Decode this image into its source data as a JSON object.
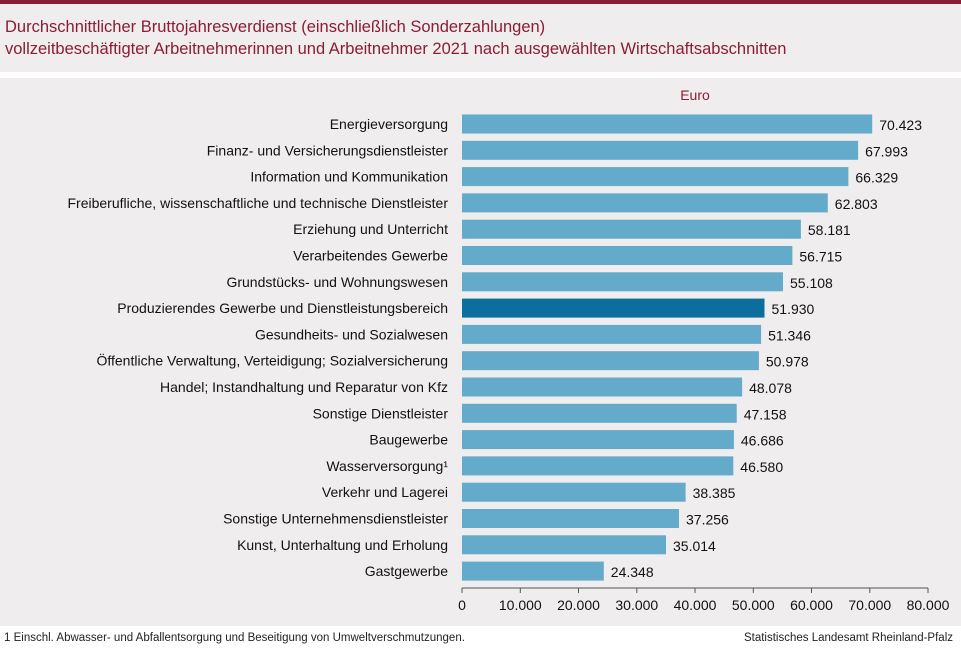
{
  "header": {
    "title_line1": "Durchschnittlicher Bruttojahresverdienst (einschließlich Sonderzahlungen)",
    "title_line2": "vollzeitbeschäftigter Arbeitnehmerinnen und Arbeitnehmer 2021 nach ausgewählten Wirtschaftsabschnitten"
  },
  "colors": {
    "bar": "#64aacb",
    "highlight": "#0b6e9c",
    "title": "#8b1c36",
    "panel": "#f0edee"
  },
  "chart_data": {
    "type": "bar",
    "orientation": "horizontal",
    "unit_label": "Euro",
    "categories": [
      "Energieversorgung",
      "Finanz- und Versicherungsdienstleister",
      "Information und Kommunikation",
      "Freiberufliche, wissenschaftliche und technische Dienstleister",
      "Erziehung und Unterricht",
      "Verarbeitendes Gewerbe",
      "Grundstücks- und Wohnungswesen",
      "Produzierendes Gewerbe und Dienstleistungsbereich",
      "Gesundheits- und Sozialwesen",
      "Öffentliche Verwaltung, Verteidigung; Sozialversicherung",
      "Handel; Instandhaltung und Reparatur von Kfz",
      "Sonstige Dienstleister",
      "Baugewerbe",
      "Wasserversorgung¹",
      "Verkehr und Lagerei",
      "Sonstige Unternehmensdienstleister",
      "Kunst, Unterhaltung und Erholung",
      "Gastgewerbe"
    ],
    "values": [
      70423,
      67993,
      66329,
      62803,
      58181,
      56715,
      55108,
      51930,
      51346,
      50978,
      48078,
      47158,
      46686,
      46580,
      38385,
      37256,
      35014,
      24348
    ],
    "value_labels": [
      "70.423",
      "67.993",
      "66.329",
      "62.803",
      "58.181",
      "56.715",
      "55.108",
      "51.930",
      "51.346",
      "50.978",
      "48.078",
      "47.158",
      "46.686",
      "46.580",
      "38.385",
      "37.256",
      "35.014",
      "24.348"
    ],
    "highlight_index": 7,
    "xlim": [
      0,
      80000
    ],
    "xticks": [
      0,
      10000,
      20000,
      30000,
      40000,
      50000,
      60000,
      70000,
      80000
    ],
    "xtick_labels": [
      "0",
      "10.000",
      "20.000",
      "30.000",
      "40.000",
      "50.000",
      "60.000",
      "70.000",
      "80.000"
    ],
    "grid": false,
    "legend": "none"
  },
  "footer": {
    "footnote": "1 Einschl. Abwasser- und Abfallentsorgung  und Beseitigung von Umweltverschmutzungen.",
    "source": "Statistisches Landesamt Rheinland-Pfalz"
  }
}
